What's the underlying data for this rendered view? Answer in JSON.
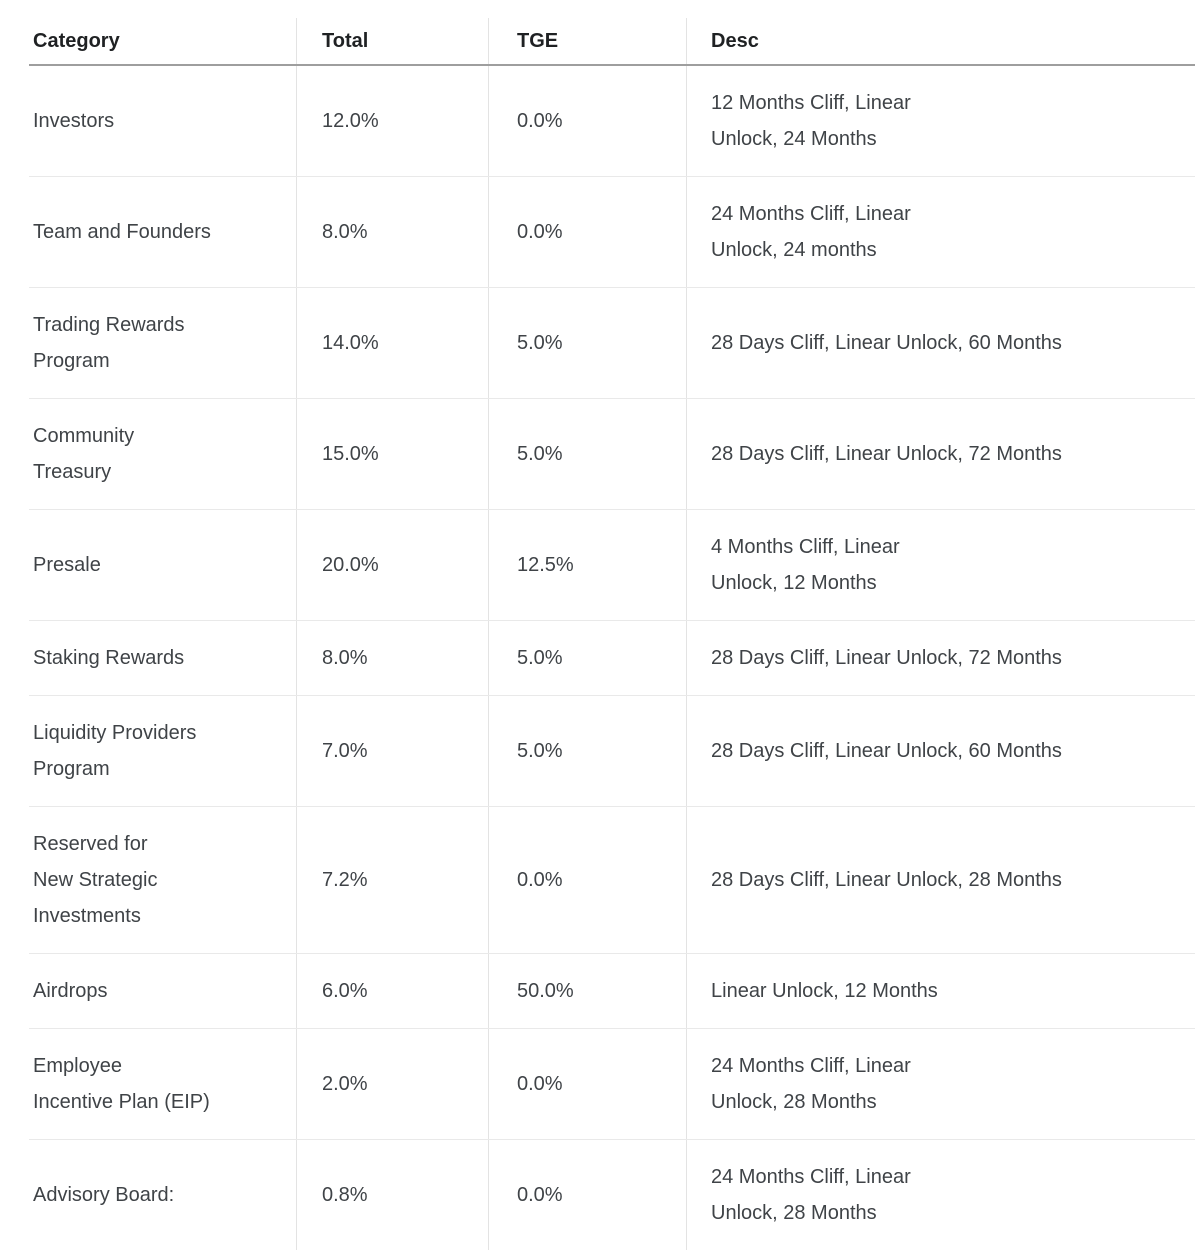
{
  "colors": {
    "background": "#ffffff",
    "header_text": "#1f2123",
    "body_text": "#3f4347",
    "header_rule": "#9e9e9e",
    "row_rule": "#e9e9e9",
    "column_rule": "#e3e3e3"
  },
  "table": {
    "columns": [
      {
        "key": "category",
        "label": "Category"
      },
      {
        "key": "total",
        "label": "Total"
      },
      {
        "key": "tge",
        "label": "TGE"
      },
      {
        "key": "desc",
        "label": "Desc"
      }
    ],
    "rows": [
      {
        "category_lines": [
          "Investors"
        ],
        "total": "12.0%",
        "tge": "0.0%",
        "desc_lines": [
          "12 Months Cliff, Linear",
          "Unlock, 24 Months"
        ]
      },
      {
        "category_lines": [
          "Team and Founders"
        ],
        "total": "8.0%",
        "tge": "0.0%",
        "desc_lines": [
          "24 Months Cliff, Linear",
          "Unlock, 24 months"
        ]
      },
      {
        "category_lines": [
          "Trading Rewards",
          "Program"
        ],
        "total": "14.0%",
        "tge": "5.0%",
        "desc_lines": [
          "28 Days Cliff, Linear Unlock, 60 Months"
        ]
      },
      {
        "category_lines": [
          "Community",
          "Treasury"
        ],
        "total": "15.0%",
        "tge": "5.0%",
        "desc_lines": [
          "28 Days Cliff, Linear Unlock, 72 Months"
        ]
      },
      {
        "category_lines": [
          "Presale"
        ],
        "total": "20.0%",
        "tge": "12.5%",
        "desc_lines": [
          "4 Months Cliff, Linear",
          "Unlock, 12 Months"
        ]
      },
      {
        "category_lines": [
          "Staking Rewards"
        ],
        "total": "8.0%",
        "tge": "5.0%",
        "desc_lines": [
          "28 Days Cliff, Linear Unlock, 72 Months"
        ]
      },
      {
        "category_lines": [
          "Liquidity Providers",
          "Program"
        ],
        "total": "7.0%",
        "tge": "5.0%",
        "desc_lines": [
          "28 Days Cliff, Linear Unlock, 60 Months"
        ]
      },
      {
        "category_lines": [
          "Reserved for",
          "New Strategic",
          "Investments"
        ],
        "total": "7.2%",
        "tge": "0.0%",
        "desc_lines": [
          "28 Days Cliff, Linear Unlock, 28 Months"
        ]
      },
      {
        "category_lines": [
          "Airdrops"
        ],
        "total": "6.0%",
        "tge": "50.0%",
        "desc_lines": [
          "Linear Unlock, 12 Months"
        ]
      },
      {
        "category_lines": [
          "Employee",
          "Incentive Plan (EIP)"
        ],
        "total": "2.0%",
        "tge": "0.0%",
        "desc_lines": [
          "24 Months Cliff, Linear",
          "Unlock, 28 Months"
        ]
      },
      {
        "category_lines": [
          "Advisory Board:"
        ],
        "total": "0.8%",
        "tge": "0.0%",
        "desc_lines": [
          "24 Months Cliff, Linear",
          "Unlock, 28 Months"
        ]
      }
    ]
  }
}
